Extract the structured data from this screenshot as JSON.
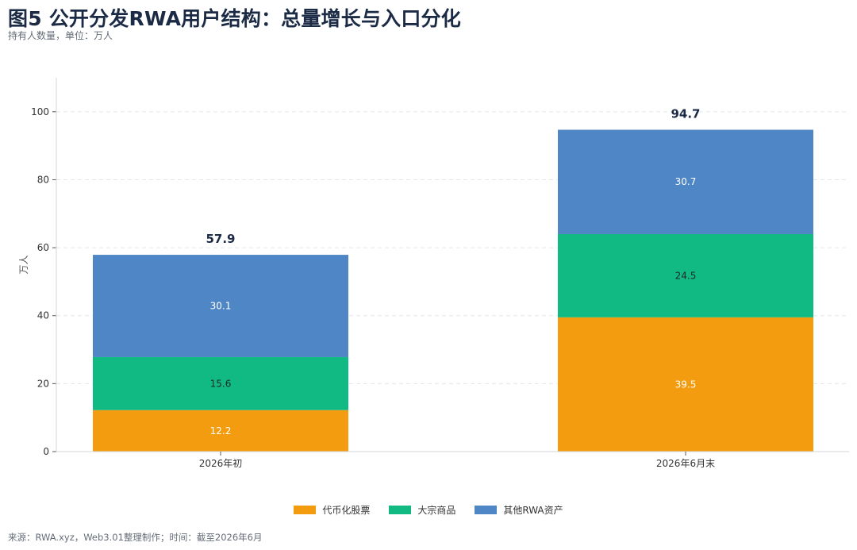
{
  "title": "图5 公开分发RWA用户结构：总量增长与入口分化",
  "subtitle": "持有人数量，单位：万人",
  "source": "来源：RWA.xyz，Web3.01整理制作；时间：截至2026年6月",
  "chart_data": {
    "type": "bar",
    "stacked": true,
    "categories": [
      "2026年初",
      "2026年6月末"
    ],
    "series": [
      {
        "name": "代币化股票",
        "values": [
          12.2,
          39.5
        ],
        "color": "#f39c0f"
      },
      {
        "name": "大宗商品",
        "values": [
          15.6,
          24.5
        ],
        "color": "#11ba82"
      },
      {
        "name": "其他RWA资产",
        "values": [
          30.1,
          30.7
        ],
        "color": "#4e86c6"
      }
    ],
    "totals": [
      "57.9",
      "94.7"
    ],
    "segment_labels": [
      [
        "12.2",
        "15.6",
        "30.1"
      ],
      [
        "39.5",
        "24.5",
        "30.7"
      ]
    ],
    "yticks": [
      "0",
      "20",
      "40",
      "60",
      "80",
      "100"
    ],
    "ylabel": "万人",
    "ylim": [
      0,
      110
    ],
    "grid": true,
    "legend_position": "bottom-center"
  }
}
